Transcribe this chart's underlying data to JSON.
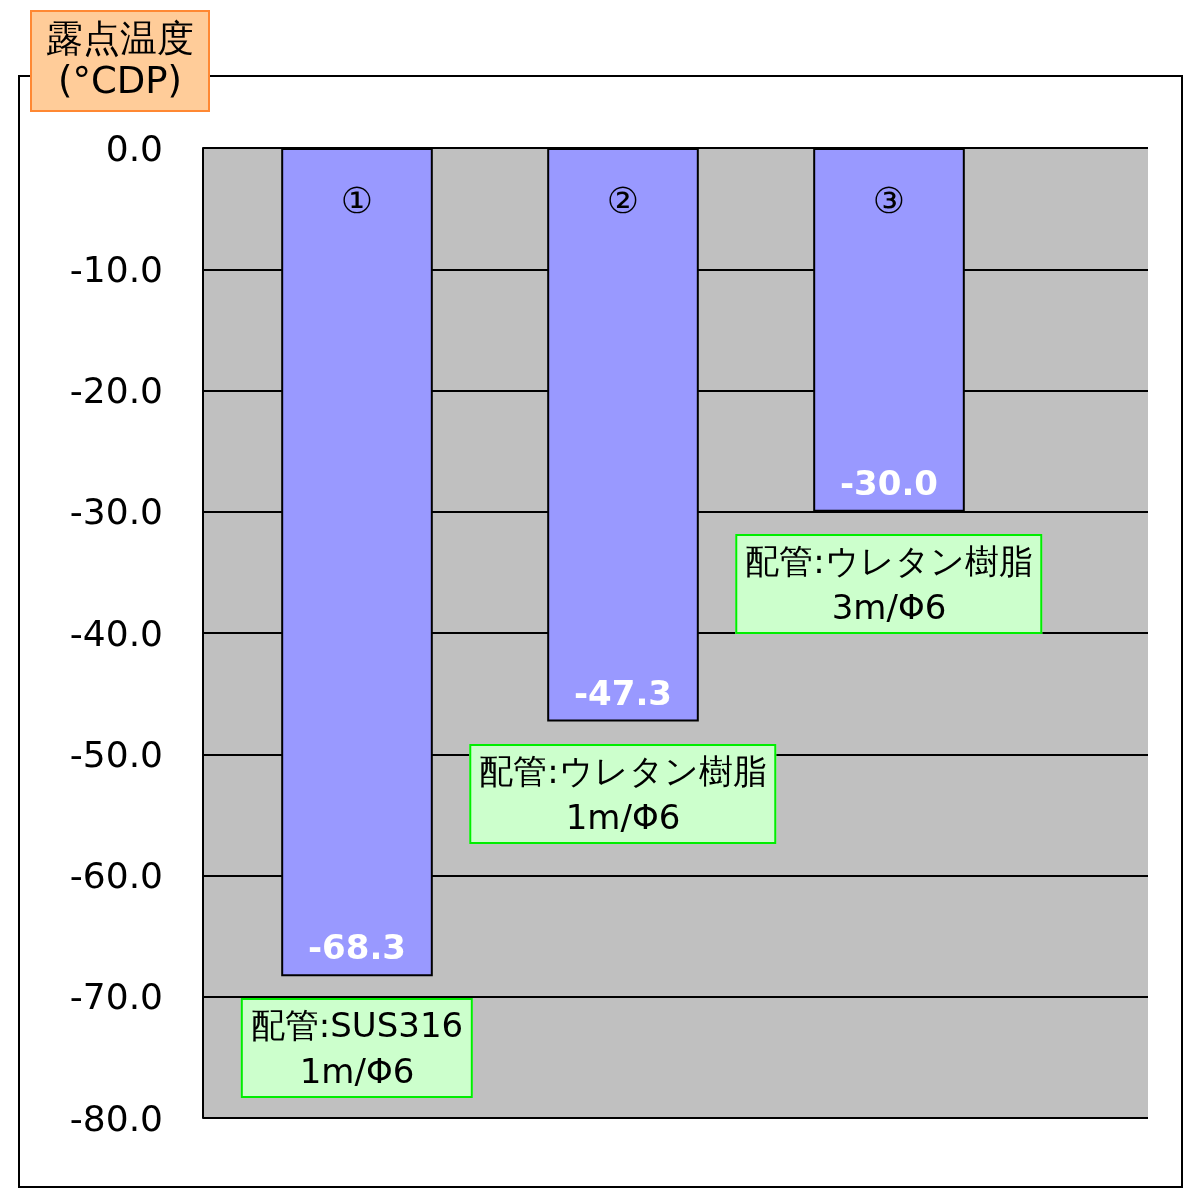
{
  "chart_data": {
    "type": "bar",
    "categories": [
      "①",
      "②",
      "③"
    ],
    "values": [
      -68.3,
      -47.3,
      -30.0
    ],
    "color": "#9999ff",
    "value_labels": [
      "-68.3",
      "-47.3",
      "-30.0"
    ],
    "ylabel": "露点温度\n(°CDP)",
    "ylim": [
      -80,
      0
    ],
    "yticks": [
      {
        "value": 0,
        "label": "0.0"
      },
      {
        "value": -10,
        "label": "-10.0"
      },
      {
        "value": -20,
        "label": "-20.0"
      },
      {
        "value": -30,
        "label": "-30.0"
      },
      {
        "value": -40,
        "label": "-40.0"
      },
      {
        "value": -50,
        "label": "-50.0"
      },
      {
        "value": -60,
        "label": "-60.0"
      },
      {
        "value": -70,
        "label": "-70.0"
      },
      {
        "value": -80,
        "label": "-80.0"
      }
    ],
    "grid": "y",
    "annotations": [
      "配管:SUS316\n1m/Φ6",
      "配管:ウレタン樹脂\n1m/Φ6",
      "配管:ウレタン樹脂\n3m/Φ6"
    ]
  }
}
